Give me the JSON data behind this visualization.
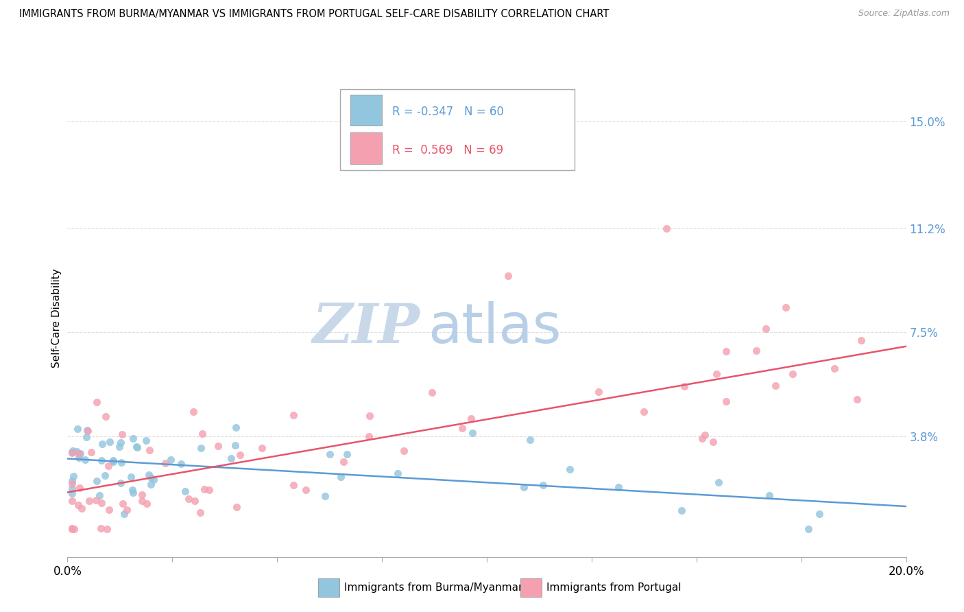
{
  "title": "IMMIGRANTS FROM BURMA/MYANMAR VS IMMIGRANTS FROM PORTUGAL SELF-CARE DISABILITY CORRELATION CHART",
  "source": "Source: ZipAtlas.com",
  "ylabel": "Self-Care Disability",
  "yticks_labels": [
    "3.8%",
    "7.5%",
    "11.2%",
    "15.0%"
  ],
  "ytick_vals": [
    0.038,
    0.075,
    0.112,
    0.15
  ],
  "xlim": [
    0.0,
    0.2
  ],
  "ylim": [
    -0.005,
    0.165
  ],
  "series1_label": "Immigrants from Burma/Myanmar",
  "series1_color": "#92c5de",
  "series1_R": "-0.347",
  "series1_N": "60",
  "series2_label": "Immigrants from Portugal",
  "series2_color": "#f4a0b0",
  "series2_R": "0.569",
  "series2_N": "69",
  "line1_color": "#5b9bd5",
  "line2_color": "#e8546a",
  "watermark_zip": "ZIP",
  "watermark_atlas": "atlas",
  "watermark_color_zip": "#c8d8e8",
  "watermark_color_atlas": "#b8cfe8",
  "background_color": "#ffffff",
  "legend_R1_color": "#5b9bd5",
  "legend_R2_color": "#e8546a",
  "grid_color": "#dddddd",
  "tick_color": "#888888",
  "line1_start_y": 0.03,
  "line1_end_y": 0.013,
  "line2_start_y": 0.018,
  "line2_end_y": 0.07
}
